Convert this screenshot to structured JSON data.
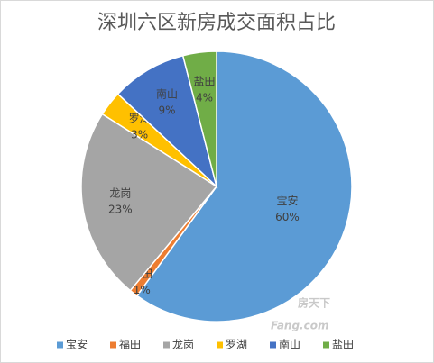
{
  "chart_data": {
    "type": "pie",
    "title": "深圳六区新房成交面积占比",
    "categories": [
      "宝安",
      "福田",
      "龙岗",
      "罗湖",
      "南山",
      "盐田"
    ],
    "values": [
      60,
      1,
      23,
      3,
      9,
      4
    ],
    "value_labels": [
      "60%",
      "1%",
      "23%",
      "3%",
      "9%",
      "4%"
    ],
    "colors": [
      "#5b9bd5",
      "#ed7d31",
      "#a5a5a5",
      "#ffc000",
      "#4472c4",
      "#70ad47"
    ],
    "legend": "bottom",
    "watermark": [
      "房天下",
      "Fang.com"
    ]
  }
}
